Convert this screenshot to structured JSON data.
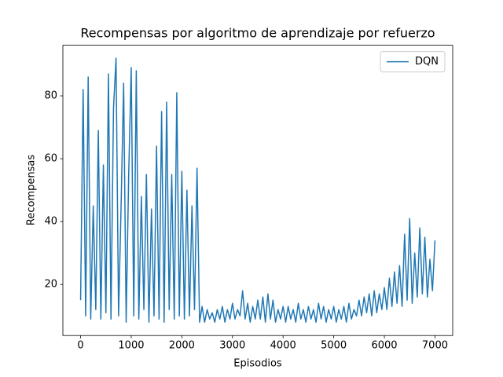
{
  "chart_data": {
    "type": "line",
    "title": "Recompensas por algoritmo de aprendizaje por refuerzo",
    "x_label": "Episodios",
    "y_label": "Recompensas",
    "x": [
      0,
      50,
      100,
      150,
      200,
      250,
      300,
      350,
      400,
      450,
      500,
      550,
      600,
      650,
      700,
      750,
      800,
      850,
      900,
      950,
      1000,
      1050,
      1100,
      1150,
      1200,
      1250,
      1300,
      1350,
      1400,
      1450,
      1500,
      1550,
      1600,
      1650,
      1700,
      1750,
      1800,
      1850,
      1900,
      1950,
      2000,
      2050,
      2100,
      2150,
      2200,
      2250,
      2300,
      2350,
      2400,
      2450,
      2500,
      2550,
      2600,
      2650,
      2700,
      2750,
      2800,
      2850,
      2900,
      2950,
      3000,
      3050,
      3100,
      3150,
      3200,
      3250,
      3300,
      3350,
      3400,
      3450,
      3500,
      3550,
      3600,
      3650,
      3700,
      3750,
      3800,
      3850,
      3900,
      3950,
      4000,
      4050,
      4100,
      4150,
      4200,
      4250,
      4300,
      4350,
      4400,
      4450,
      4500,
      4550,
      4600,
      4650,
      4700,
      4750,
      4800,
      4850,
      4900,
      4950,
      5000,
      5050,
      5100,
      5150,
      5200,
      5250,
      5300,
      5350,
      5400,
      5450,
      5500,
      5550,
      5600,
      5650,
      5700,
      5750,
      5800,
      5850,
      5900,
      5950,
      6000,
      6050,
      6100,
      6150,
      6200,
      6250,
      6300,
      6350,
      6400,
      6450,
      6500,
      6550,
      6600,
      6650,
      6700,
      6750,
      6800,
      6850,
      6900,
      6950,
      7000
    ],
    "series": [
      {
        "name": "DQN",
        "color": "#1f77b4",
        "values": [
          15,
          82,
          10,
          86,
          9,
          45,
          12,
          69,
          9,
          58,
          11,
          87,
          9,
          76,
          92,
          10,
          45,
          84,
          8,
          55,
          89,
          10,
          88,
          9,
          48,
          12,
          55,
          8,
          44,
          10,
          64,
          9,
          75,
          8,
          78,
          12,
          55,
          9,
          81,
          10,
          56,
          9,
          50,
          10,
          45,
          12,
          57,
          8,
          13,
          8,
          12,
          9,
          11,
          8,
          12,
          9,
          13,
          8,
          12,
          9,
          14,
          9,
          12,
          10,
          18,
          9,
          14,
          8,
          13,
          9,
          15,
          9,
          16,
          8,
          17,
          9,
          15,
          8,
          12,
          9,
          13,
          8,
          13,
          9,
          12,
          8,
          14,
          9,
          12,
          8,
          13,
          9,
          12,
          8,
          14,
          9,
          13,
          8,
          12,
          9,
          13,
          8,
          12,
          9,
          13,
          8,
          14,
          9,
          12,
          10,
          15,
          10,
          16,
          11,
          17,
          10,
          18,
          11,
          17,
          12,
          19,
          12,
          22,
          13,
          24,
          14,
          26,
          13,
          36,
          15,
          41,
          14,
          30,
          16,
          38,
          17,
          35,
          16,
          28,
          18,
          34
        ]
      }
    ],
    "xlim": [
      -350,
      7350
    ],
    "ylim": [
      3.75,
      96.1
    ],
    "xticks": [
      0,
      1000,
      2000,
      3000,
      4000,
      5000,
      6000,
      7000
    ],
    "yticks": [
      20,
      40,
      60,
      80
    ],
    "legend": "upper right"
  }
}
